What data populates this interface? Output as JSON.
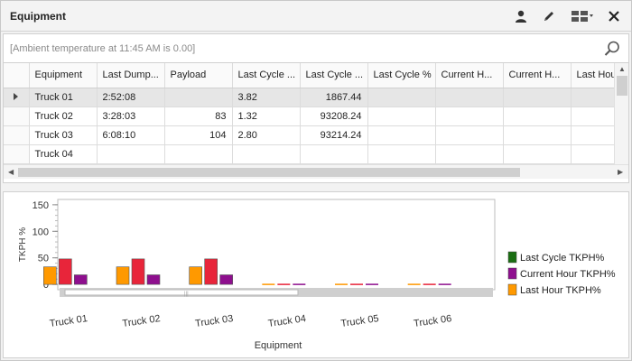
{
  "window": {
    "title": "Equipment"
  },
  "toolbar": {
    "icons": [
      "user-icon",
      "pencil-icon",
      "layout-grid-icon",
      "close-icon"
    ]
  },
  "filter": {
    "text": "[Ambient temperature at 11:45 AM is  0.00]"
  },
  "table": {
    "columns": [
      "Equipment",
      "Last Dump...",
      "Payload",
      "Last Cycle ...",
      "Last Cycle ...",
      "Last Cycle %",
      "Current H...",
      "Current H...",
      "Last Hour ..."
    ],
    "rows": [
      [
        "Truck 01",
        "2:52:08",
        "",
        "3.82",
        "1867.44",
        "",
        "",
        "",
        ""
      ],
      [
        "Truck 02",
        "3:28:03",
        "83",
        "1.32",
        "93208.24",
        "",
        "",
        "",
        ""
      ],
      [
        "Truck 03",
        "6:08:10",
        "104",
        "2.80",
        "93214.24",
        "",
        "",
        "",
        ""
      ],
      [
        "Truck 04",
        "",
        "",
        "",
        "",
        "",
        "",
        "",
        ""
      ]
    ],
    "selected_row": 0
  },
  "chart_data": {
    "type": "bar",
    "categories": [
      "Truck 01",
      "Truck 02",
      "Truck 03",
      "Truck 04",
      "Truck 05",
      "Truck 06"
    ],
    "series": [
      {
        "name": "Last Hour TKPH%",
        "color": "#ff9900",
        "values": [
          33,
          33,
          33,
          0,
          0,
          0
        ]
      },
      {
        "name": "Last Cycle TKPH%",
        "color": "#e8253a",
        "values": [
          48,
          48,
          48,
          0,
          0,
          0
        ]
      },
      {
        "name": "Current Hour TKPH%",
        "color": "#8e0f8e",
        "values": [
          18,
          18,
          18,
          0,
          0,
          0
        ]
      }
    ],
    "legend_entries": [
      {
        "name": "Last Cycle TKPH%",
        "color": "#1a6e12"
      },
      {
        "name": "Current Hour TKPH%",
        "color": "#8e0f8e"
      },
      {
        "name": "Last Hour TKPH%",
        "color": "#ff9900"
      }
    ],
    "xlabel": "Equipment",
    "ylabel": "TKPH %",
    "yticks": [
      0,
      50,
      100,
      150
    ],
    "ylim": [
      -10,
      160
    ],
    "legend_position": "right"
  }
}
